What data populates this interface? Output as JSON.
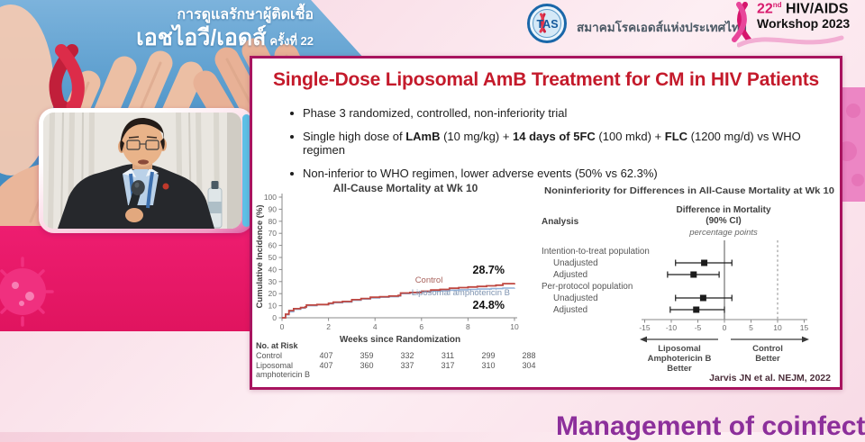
{
  "header": {
    "banner": {
      "line1": "การดูแลรักษาผู้ติดเชื้อ",
      "line2": "เอชไอวี/เอดส์",
      "line2_suffix": "ครั้งที่ 22"
    },
    "society": {
      "logo_text": "TAS",
      "name_thai": "สมาคมโรคเอดส์แห่งประเทศไทย"
    },
    "workshop": {
      "number": "22",
      "ordinal": "nd",
      "line1": "HIV/AIDS",
      "line2": "Workshop 2023"
    }
  },
  "slide": {
    "title": "Single-Dose Liposomal AmB Treatment for CM in HIV Patients",
    "bullets": [
      [
        {
          "t": "Phase 3 randomized, controlled, non-inferiority trial"
        }
      ],
      [
        {
          "t": "Single high dose of "
        },
        {
          "t": "LAmB",
          "b": true
        },
        {
          "t": " (10 mg/kg) + "
        },
        {
          "t": "14 days of 5FC",
          "b": true
        },
        {
          "t": " (100 mkd) + "
        },
        {
          "t": "FLC",
          "b": true
        },
        {
          "t": " (1200 mg/d) vs WHO regimen"
        }
      ],
      [
        {
          "t": "Non-inferior to WHO regimen, lower adverse events (50% vs 62.3%)"
        }
      ]
    ],
    "citation": "Jarvis JN et al. NEJM, 2022"
  },
  "chart_data": [
    {
      "type": "line",
      "title": "All-Cause Mortality at Wk 10",
      "xlabel": "Weeks since Randomization",
      "ylabel": "Cumulative Incidence (%)",
      "xlim": [
        0,
        10
      ],
      "ylim": [
        0,
        100
      ],
      "xticks": [
        0,
        2,
        4,
        6,
        8,
        10
      ],
      "yticks": [
        0,
        10,
        20,
        30,
        40,
        50,
        60,
        70,
        80,
        90,
        100
      ],
      "series": [
        {
          "name": "Control",
          "data_name": "control-curve",
          "color": "#bf4740",
          "stroke_width": 1.8,
          "end_label": "28.7%",
          "points": [
            [
              0,
              0
            ],
            [
              0.15,
              3
            ],
            [
              0.3,
              6
            ],
            [
              0.5,
              7.5
            ],
            [
              0.8,
              8.5
            ],
            [
              1,
              9
            ],
            [
              1.05,
              10.5
            ],
            [
              1.5,
              11
            ],
            [
              2,
              12
            ],
            [
              2.2,
              13
            ],
            [
              2.6,
              13.5
            ],
            [
              3,
              15
            ],
            [
              3.4,
              16
            ],
            [
              3.8,
              17
            ],
            [
              4.2,
              17.5
            ],
            [
              4.6,
              18
            ],
            [
              5,
              18.5
            ],
            [
              5.1,
              20.5
            ],
            [
              5.5,
              21
            ],
            [
              6,
              22
            ],
            [
              6.4,
              23
            ],
            [
              6.8,
              23.5
            ],
            [
              7.2,
              24.5
            ],
            [
              7.6,
              25
            ],
            [
              8,
              25.5
            ],
            [
              8.4,
              26
            ],
            [
              8.8,
              26.5
            ],
            [
              9.2,
              27
            ],
            [
              9.5,
              28.3
            ],
            [
              10,
              28.7
            ]
          ]
        },
        {
          "name": "Liposomal amphotericin B",
          "data_name": "liposomal-amb-curve",
          "color": "#92b2d9",
          "stroke_width": 1.6,
          "end_label": "24.8%",
          "points": [
            [
              0,
              0
            ],
            [
              0.15,
              2.5
            ],
            [
              0.3,
              5
            ],
            [
              0.5,
              7
            ],
            [
              0.8,
              8
            ],
            [
              1,
              8.8
            ],
            [
              1.05,
              10
            ],
            [
              1.5,
              10.8
            ],
            [
              2,
              11.5
            ],
            [
              2.2,
              12.5
            ],
            [
              2.6,
              13
            ],
            [
              3,
              14.5
            ],
            [
              3.4,
              15.5
            ],
            [
              3.8,
              16.5
            ],
            [
              4.2,
              17
            ],
            [
              4.6,
              17.5
            ],
            [
              5,
              18
            ],
            [
              5.1,
              20
            ],
            [
              5.5,
              20.5
            ],
            [
              6,
              21.5
            ],
            [
              6.4,
              22
            ],
            [
              6.8,
              22.3
            ],
            [
              7.2,
              22.8
            ],
            [
              7.6,
              23.2
            ],
            [
              8,
              23.5
            ],
            [
              8.4,
              23.8
            ],
            [
              9,
              24.2
            ],
            [
              9.5,
              24.6
            ],
            [
              10,
              24.8
            ]
          ]
        }
      ],
      "risk_table": {
        "title": "No. at Risk",
        "rows": [
          {
            "label": [
              "Control"
            ],
            "values": [
              407,
              359,
              332,
              311,
              299,
              288
            ]
          },
          {
            "label": [
              "Liposomal",
              "amphotericin B"
            ],
            "values": [
              407,
              360,
              337,
              317,
              310,
              304
            ]
          }
        ]
      }
    },
    {
      "type": "forest",
      "title": "Noninferiority for Differences in All-Cause Mortality at Wk 10",
      "col_header": "Analysis",
      "effect_header_1": "Difference in Mortality",
      "effect_header_2": "(90% CI)",
      "effect_header_3": "percentage points",
      "xlim": [
        -15,
        15
      ],
      "xticks": [
        -15,
        -10,
        -5,
        0,
        5,
        10,
        15
      ],
      "zero_line": 0,
      "noninferiority_margin": 10,
      "groups": [
        {
          "label": "Intention-to-treat population",
          "rows": [
            {
              "label": "Unadjusted",
              "est": -3.8,
              "lo": -9.2,
              "hi": 1.4
            },
            {
              "label": "Adjusted",
              "est": -5.8,
              "lo": -10.7,
              "hi": -1.0
            }
          ]
        },
        {
          "label": "Per-protocol population",
          "rows": [
            {
              "label": "Unadjusted",
              "est": -4.0,
              "lo": -9.2,
              "hi": 1.4
            },
            {
              "label": "Adjusted",
              "est": -5.3,
              "lo": -10.2,
              "hi": 0.0
            }
          ]
        }
      ],
      "left_arrow_label": [
        "Liposomal",
        "Amphotericin B",
        "Better"
      ],
      "right_arrow_label": [
        "Control",
        "Better"
      ]
    }
  ],
  "footer": {
    "next_title": "Management of coinfections"
  },
  "colors": {
    "slide_border": "#a8145f",
    "slide_title_red": "#c41a2b",
    "magenta_panel": "#ee1d70",
    "banner_blue": "#4b93c7",
    "footer_purple": "#8c2f9b",
    "control_red": "#bf4740",
    "liposomal_blue": "#92b2d9",
    "workshop_pink": "#d81b6e"
  }
}
